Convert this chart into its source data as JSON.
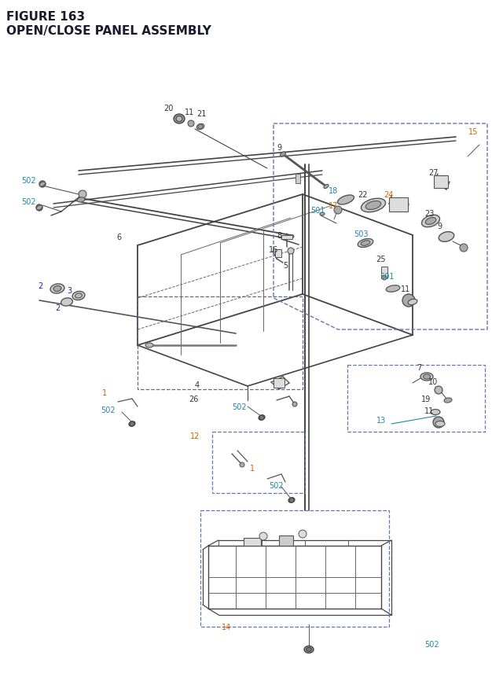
{
  "title_line1": "FIGURE 163",
  "title_line2": "OPEN/CLOSE PANEL ASSEMBLY",
  "title_color": "#1a1a2e",
  "title_fontsize": 11,
  "background_color": "#ffffff",
  "fig_width": 6.4,
  "fig_height": 8.62,
  "dpi": 100
}
